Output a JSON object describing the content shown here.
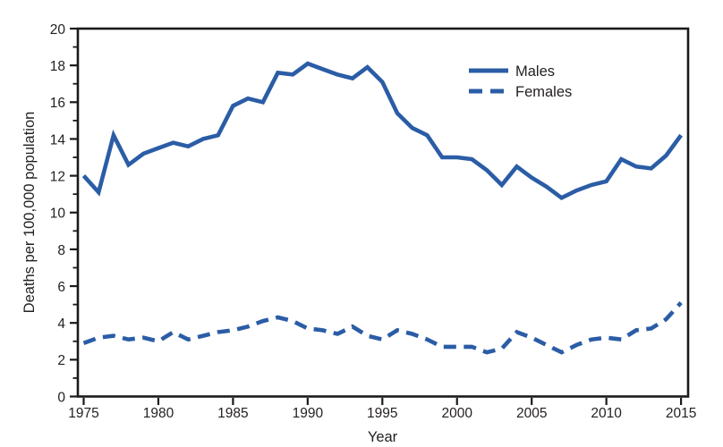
{
  "figure": {
    "background_color": "#FFFFFF",
    "line_color": "#2B5DA6",
    "axis_color": "#1A1A1A",
    "text_color": "#231F20"
  },
  "chart_data": {
    "type": "line",
    "title": "",
    "xlabel": "Year",
    "ylabel": "Deaths per 100,000 population",
    "x": [
      1975,
      1976,
      1977,
      1978,
      1979,
      1980,
      1981,
      1982,
      1983,
      1984,
      1985,
      1986,
      1987,
      1988,
      1989,
      1990,
      1991,
      1992,
      1993,
      1994,
      1995,
      1996,
      1997,
      1998,
      1999,
      2000,
      2001,
      2002,
      2003,
      2004,
      2005,
      2006,
      2007,
      2008,
      2009,
      2010,
      2011,
      2012,
      2013,
      2014,
      2015
    ],
    "series": [
      {
        "name": "Males",
        "style": "solid",
        "values": [
          12.0,
          11.1,
          14.2,
          12.6,
          13.2,
          13.5,
          13.8,
          13.6,
          14.0,
          14.2,
          15.8,
          16.2,
          16.0,
          17.6,
          17.5,
          18.1,
          17.8,
          17.5,
          17.3,
          17.9,
          17.1,
          15.4,
          14.6,
          14.2,
          13.0,
          13.0,
          12.9,
          12.3,
          11.5,
          12.5,
          11.9,
          11.4,
          10.8,
          11.2,
          11.5,
          11.7,
          12.9,
          12.5,
          12.4,
          13.1,
          14.2
        ]
      },
      {
        "name": "Females",
        "style": "dashed",
        "values": [
          2.9,
          3.2,
          3.3,
          3.1,
          3.2,
          3.0,
          3.5,
          3.1,
          3.3,
          3.5,
          3.6,
          3.8,
          4.1,
          4.3,
          4.1,
          3.7,
          3.6,
          3.4,
          3.8,
          3.3,
          3.1,
          3.6,
          3.4,
          3.1,
          2.7,
          2.7,
          2.7,
          2.4,
          2.6,
          3.5,
          3.2,
          2.8,
          2.4,
          2.8,
          3.1,
          3.2,
          3.1,
          3.6,
          3.7,
          4.2,
          5.1
        ]
      }
    ],
    "xlim": [
      1975,
      2015
    ],
    "ylim": [
      0,
      20
    ],
    "xticks": [
      1975,
      1980,
      1985,
      1990,
      1995,
      2000,
      2005,
      2010,
      2015
    ],
    "yticks_labeled": [
      0,
      2,
      4,
      6,
      8,
      10,
      12,
      14,
      16,
      18,
      20
    ],
    "ytick_minor_step": 1,
    "grid": false,
    "legend": {
      "position": "upper-middle-right",
      "entries": [
        "Males",
        "Females"
      ]
    }
  }
}
